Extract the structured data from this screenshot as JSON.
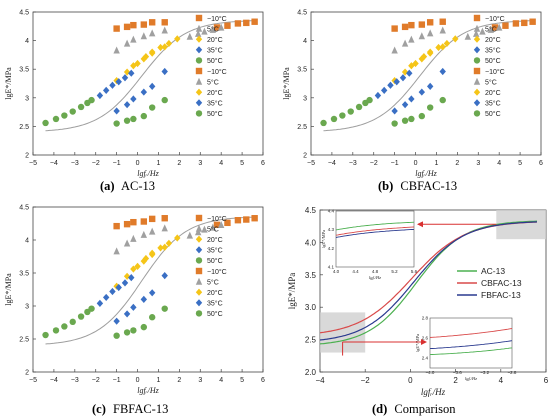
{
  "figure": {
    "captions": [
      {
        "id": "a",
        "letter": "(a)",
        "name": "AC-13"
      },
      {
        "id": "b",
        "letter": "(b)",
        "name": "CBFAC-13"
      },
      {
        "id": "c",
        "letter": "(c)",
        "name": "FBFAC-13"
      },
      {
        "id": "d",
        "letter": "(d)",
        "name": "Comparison"
      }
    ]
  },
  "colors": {
    "minus10": "#e07b2a",
    "c5": "#a0a0a0",
    "c20": "#f5c518",
    "c35": "#3a6fc4",
    "c50": "#6aa84f",
    "master_line": "#9e9e9e",
    "ac13": "#4cb050",
    "cbfac13": "#d94a4a",
    "fbfac13": "#2a3a8f",
    "arrow": "#d93030",
    "zoom_box": "#d0d0d0"
  },
  "chart_data": [
    {
      "id": "a",
      "type": "scatter",
      "title": "",
      "xlabel": "lgfᵣ/Hz",
      "ylabel": "lgE*/MPa",
      "xlim": [
        -5,
        6
      ],
      "ylim": [
        2,
        4.5
      ],
      "xticks": [
        "-5",
        "-4",
        "-3",
        "-2",
        "-1",
        "0",
        "1",
        "2",
        "3",
        "4",
        "5",
        "6"
      ],
      "yticks": [
        "2",
        "2.5",
        "3",
        "3.5",
        "4",
        "4.5"
      ],
      "grid": false,
      "legend_position": "right",
      "legend": [
        "−10°C",
        "5°C",
        "20°C",
        "35°C",
        "50°C",
        "−10°C",
        "5°C",
        "20°C",
        "35°C",
        "50°C"
      ],
      "series": [
        {
          "name": "−10°C",
          "marker": "square",
          "color": "#e07b2a",
          "x": [
            -1,
            -0.5,
            -0.2,
            0.3,
            0.7,
            1.3
          ],
          "y": [
            4.21,
            4.24,
            4.27,
            4.28,
            4.32,
            4.32
          ]
        },
        {
          "name": "5°C",
          "marker": "triangle",
          "color": "#a0a0a0",
          "x": [
            -1,
            -0.5,
            -0.2,
            0.3,
            0.7,
            1.3
          ],
          "y": [
            3.83,
            3.95,
            4.02,
            4.08,
            4.13,
            4.18
          ]
        },
        {
          "name": "20°C",
          "marker": "diamond",
          "color": "#f5c518",
          "x": [
            -1,
            -0.5,
            -0.2,
            0.3,
            0.7,
            1.3
          ],
          "y": [
            3.3,
            3.45,
            3.56,
            3.68,
            3.78,
            3.89
          ]
        },
        {
          "name": "35°C",
          "marker": "diamond",
          "color": "#3a6fc4",
          "x": [
            -1,
            -0.5,
            -0.2,
            0.3,
            0.7,
            1.3
          ],
          "y": [
            2.77,
            2.88,
            2.98,
            3.1,
            3.2,
            3.46
          ]
        },
        {
          "name": "50°C",
          "marker": "circle",
          "color": "#6aa84f",
          "x": [
            -1,
            -0.5,
            -0.2,
            0.3,
            0.7,
            1.3
          ],
          "y": [
            2.55,
            2.6,
            2.63,
            2.68,
            2.83,
            2.96
          ]
        },
        {
          "name": "−10°C",
          "marker": "square",
          "color": "#e07b2a",
          "x": [
            3.8,
            4.3,
            4.8,
            5.2,
            5.6
          ],
          "y": [
            4.23,
            4.26,
            4.3,
            4.31,
            4.33
          ]
        },
        {
          "name": "5°C",
          "marker": "triangle",
          "color": "#a0a0a0",
          "x": [
            2.5,
            2.9,
            3.2,
            3.6,
            4.0
          ],
          "y": [
            4.07,
            4.12,
            4.16,
            4.19,
            4.23
          ]
        },
        {
          "name": "20°C",
          "marker": "diamond",
          "color": "#f5c518",
          "x": [
            0,
            0.4,
            0.7,
            1.1,
            1.5,
            1.9
          ],
          "y": [
            3.6,
            3.72,
            3.8,
            3.88,
            3.95,
            4.03
          ]
        },
        {
          "name": "35°C",
          "marker": "diamond",
          "color": "#3a6fc4",
          "x": [
            -1.8,
            -1.5,
            -1.2,
            -0.9,
            -0.6,
            -0.3
          ],
          "y": [
            3.04,
            3.13,
            3.22,
            3.28,
            3.35,
            3.43
          ]
        },
        {
          "name": "50°C",
          "marker": "circle",
          "color": "#6aa84f",
          "x": [
            -4.4,
            -3.9,
            -3.5,
            -3.1,
            -2.7,
            -2.4,
            -2.2
          ],
          "y": [
            2.56,
            2.63,
            2.69,
            2.76,
            2.84,
            2.91,
            2.96
          ]
        }
      ],
      "master_curve": {
        "lo": 2.4,
        "hi": 4.36,
        "mid": 0.2,
        "k": 0.95
      }
    },
    {
      "id": "b",
      "type": "scatter",
      "title": "",
      "xlabel": "lgfᵣ/Hz",
      "ylabel": "lgE*/MPa",
      "xlim": [
        -5,
        6
      ],
      "ylim": [
        2,
        4.5
      ],
      "xticks": [
        "-5",
        "-4",
        "-3",
        "-2",
        "-1",
        "0",
        "1",
        "2",
        "3",
        "4",
        "5",
        "6"
      ],
      "yticks": [
        "2",
        "2.5",
        "3",
        "3.5",
        "4",
        "4.5"
      ],
      "grid": false,
      "legend_position": "right",
      "legend": [
        "−10°C",
        "5°C",
        "20°C",
        "35°C",
        "50°C",
        "−10°C",
        "5°C",
        "20°C",
        "35°C",
        "50°C"
      ],
      "series": [
        {
          "name": "−10°C",
          "marker": "square",
          "color": "#e07b2a",
          "x": [
            -1,
            -0.5,
            -0.2,
            0.3,
            0.7,
            1.3
          ],
          "y": [
            4.21,
            4.24,
            4.27,
            4.28,
            4.32,
            4.33
          ]
        },
        {
          "name": "5°C",
          "marker": "triangle",
          "color": "#a0a0a0",
          "x": [
            -1,
            -0.5,
            -0.2,
            0.3,
            0.7,
            1.3
          ],
          "y": [
            3.83,
            3.95,
            4.02,
            4.08,
            4.13,
            4.18
          ]
        },
        {
          "name": "20°C",
          "marker": "diamond",
          "color": "#f5c518",
          "x": [
            -1,
            -0.5,
            -0.2,
            0.3,
            0.7,
            1.3
          ],
          "y": [
            3.3,
            3.45,
            3.56,
            3.68,
            3.78,
            3.89
          ]
        },
        {
          "name": "35°C",
          "marker": "diamond",
          "color": "#3a6fc4",
          "x": [
            -1,
            -0.5,
            -0.2,
            0.3,
            0.7,
            1.3
          ],
          "y": [
            2.77,
            2.88,
            2.98,
            3.1,
            3.2,
            3.46
          ]
        },
        {
          "name": "50°C",
          "marker": "circle",
          "color": "#6aa84f",
          "x": [
            -1,
            -0.5,
            -0.2,
            0.3,
            0.7,
            1.3
          ],
          "y": [
            2.55,
            2.6,
            2.63,
            2.68,
            2.83,
            2.96
          ]
        },
        {
          "name": "−10°C",
          "marker": "square",
          "color": "#e07b2a",
          "x": [
            3.8,
            4.3,
            4.8,
            5.2,
            5.6
          ],
          "y": [
            4.23,
            4.26,
            4.3,
            4.31,
            4.33
          ]
        },
        {
          "name": "5°C",
          "marker": "triangle",
          "color": "#a0a0a0",
          "x": [
            2.5,
            2.9,
            3.2,
            3.6,
            4.0
          ],
          "y": [
            4.07,
            4.12,
            4.16,
            4.19,
            4.23
          ]
        },
        {
          "name": "20°C",
          "marker": "diamond",
          "color": "#f5c518",
          "x": [
            0,
            0.4,
            0.7,
            1.1,
            1.5,
            1.9
          ],
          "y": [
            3.6,
            3.72,
            3.8,
            3.88,
            3.95,
            4.03
          ]
        },
        {
          "name": "35°C",
          "marker": "diamond",
          "color": "#3a6fc4",
          "x": [
            -1.8,
            -1.5,
            -1.2,
            -0.9,
            -0.6,
            -0.3
          ],
          "y": [
            3.04,
            3.13,
            3.22,
            3.28,
            3.35,
            3.43
          ]
        },
        {
          "name": "50°C",
          "marker": "circle",
          "color": "#6aa84f",
          "x": [
            -4.4,
            -3.9,
            -3.5,
            -3.1,
            -2.7,
            -2.4,
            -2.2
          ],
          "y": [
            2.56,
            2.63,
            2.69,
            2.76,
            2.84,
            2.91,
            2.96
          ]
        }
      ],
      "master_curve": {
        "lo": 2.4,
        "hi": 4.36,
        "mid": 0.2,
        "k": 0.95
      }
    },
    {
      "id": "c",
      "type": "scatter",
      "title": "",
      "xlabel": "lgfᵣ/Hz",
      "ylabel": "lgE*/MPa",
      "xlim": [
        -5,
        6
      ],
      "ylim": [
        2,
        4.5
      ],
      "xticks": [
        "-5",
        "-4",
        "-3",
        "-2",
        "-1",
        "0",
        "1",
        "2",
        "3",
        "4",
        "5",
        "6"
      ],
      "yticks": [
        "2",
        "2.5",
        "3",
        "3.5",
        "4",
        "4.5"
      ],
      "grid": false,
      "legend_position": "right",
      "legend": [
        "−10°C",
        "5°C",
        "20°C",
        "35°C",
        "50°C",
        "−10°C",
        "5°C",
        "20°C",
        "35°C",
        "50°C"
      ],
      "series": [
        {
          "name": "−10°C",
          "marker": "square",
          "color": "#e07b2a",
          "x": [
            -1,
            -0.5,
            -0.2,
            0.3,
            0.7,
            1.3
          ],
          "y": [
            4.21,
            4.24,
            4.27,
            4.28,
            4.32,
            4.33
          ]
        },
        {
          "name": "5°C",
          "marker": "triangle",
          "color": "#a0a0a0",
          "x": [
            -1,
            -0.5,
            -0.2,
            0.3,
            0.7,
            1.3
          ],
          "y": [
            3.83,
            3.95,
            4.02,
            4.08,
            4.13,
            4.18
          ]
        },
        {
          "name": "20°C",
          "marker": "diamond",
          "color": "#f5c518",
          "x": [
            -1,
            -0.5,
            -0.2,
            0.3,
            0.7,
            1.3
          ],
          "y": [
            3.3,
            3.45,
            3.56,
            3.68,
            3.78,
            3.89
          ]
        },
        {
          "name": "35°C",
          "marker": "diamond",
          "color": "#3a6fc4",
          "x": [
            -1,
            -0.5,
            -0.2,
            0.3,
            0.7,
            1.3
          ],
          "y": [
            2.77,
            2.88,
            2.98,
            3.1,
            3.2,
            3.46
          ]
        },
        {
          "name": "50°C",
          "marker": "circle",
          "color": "#6aa84f",
          "x": [
            -1,
            -0.5,
            -0.2,
            0.3,
            0.7,
            1.3
          ],
          "y": [
            2.55,
            2.6,
            2.63,
            2.68,
            2.83,
            2.96
          ]
        },
        {
          "name": "−10°C",
          "marker": "square",
          "color": "#e07b2a",
          "x": [
            3.8,
            4.3,
            4.8,
            5.2,
            5.6
          ],
          "y": [
            4.23,
            4.26,
            4.3,
            4.31,
            4.33
          ]
        },
        {
          "name": "5°C",
          "marker": "triangle",
          "color": "#a0a0a0",
          "x": [
            2.5,
            2.9,
            3.2,
            3.6,
            4.0
          ],
          "y": [
            4.07,
            4.12,
            4.16,
            4.19,
            4.23
          ]
        },
        {
          "name": "20°C",
          "marker": "diamond",
          "color": "#f5c518",
          "x": [
            0,
            0.4,
            0.7,
            1.1,
            1.5,
            1.9
          ],
          "y": [
            3.6,
            3.72,
            3.8,
            3.88,
            3.95,
            4.03
          ]
        },
        {
          "name": "35°C",
          "marker": "diamond",
          "color": "#3a6fc4",
          "x": [
            -1.8,
            -1.5,
            -1.2,
            -0.9,
            -0.6,
            -0.3
          ],
          "y": [
            3.04,
            3.13,
            3.22,
            3.28,
            3.35,
            3.43
          ]
        },
        {
          "name": "50°C",
          "marker": "circle",
          "color": "#6aa84f",
          "x": [
            -4.4,
            -3.9,
            -3.5,
            -3.1,
            -2.7,
            -2.4,
            -2.2
          ],
          "y": [
            2.56,
            2.63,
            2.69,
            2.76,
            2.84,
            2.91,
            2.96
          ]
        }
      ],
      "master_curve": {
        "lo": 2.4,
        "hi": 4.36,
        "mid": 0.2,
        "k": 0.95
      }
    },
    {
      "id": "d",
      "type": "line",
      "title": "",
      "xlabel": "lgfᵣ/Hz",
      "ylabel": "lgE*/MPa",
      "xlim": [
        -4,
        6
      ],
      "ylim": [
        2.0,
        4.5
      ],
      "xticks": [
        "-4",
        "-2",
        "0",
        "2",
        "4",
        "6"
      ],
      "yticks": [
        "2.0",
        "2.5",
        "3.0",
        "3.5",
        "4.0",
        "4.5"
      ],
      "grid": false,
      "legend_position": "right",
      "series": [
        {
          "name": "AC-13",
          "color": "#4cb050",
          "lo": 2.4,
          "hi": 4.34,
          "mid": 0.25,
          "k": 0.95
        },
        {
          "name": "CBFAC-13",
          "color": "#d94a4a",
          "lo": 2.55,
          "hi": 4.33,
          "mid": 0.05,
          "k": 0.85
        },
        {
          "name": "FBFAC-13",
          "color": "#2a3a8f",
          "lo": 2.45,
          "hi": 4.33,
          "mid": 0.15,
          "k": 0.9
        }
      ],
      "inset_top": {
        "xlim": [
          4.0,
          5.6
        ],
        "ylim": [
          4.1,
          4.4
        ],
        "xticks": [
          "4.0",
          "4.4",
          "4.8",
          "5.2",
          "5.6"
        ],
        "yticks": [
          "4.1",
          "4.2",
          "4.3",
          "4.4"
        ],
        "ylabel": "lgE*/MPa",
        "xlabel": "lgfᵣ/Hz"
      },
      "inset_bottom": {
        "xlim": [
          -4.0,
          -2.8
        ],
        "ylim": [
          2.3,
          2.8
        ],
        "xticks": [
          "-4.0",
          "-3.6",
          "-3.2",
          "-2.8"
        ],
        "yticks": [
          "2.4",
          "2.6",
          "2.8"
        ],
        "ylabel": "lgE*/MPa",
        "xlabel": "lgfᵣ/Hz"
      }
    }
  ]
}
